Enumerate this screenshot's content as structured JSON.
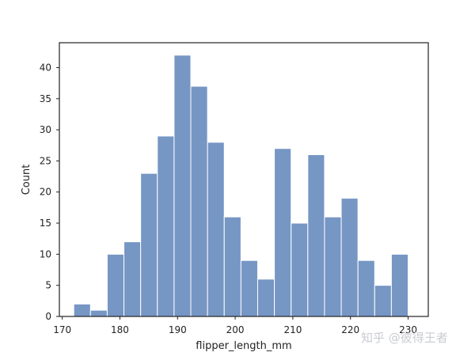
{
  "chart_data": {
    "type": "bar",
    "xlabel": "flipper_length_mm",
    "ylabel": "Count",
    "xlim": [
      169.5,
      233.5
    ],
    "ylim": [
      0,
      44
    ],
    "xticks": [
      170,
      180,
      190,
      200,
      210,
      220,
      230
    ],
    "yticks": [
      0,
      5,
      10,
      15,
      20,
      25,
      30,
      35,
      40
    ],
    "grid": false,
    "bar_color": "#7696c4",
    "bins": [
      {
        "x0": 172.0,
        "x1": 174.9,
        "value": 2
      },
      {
        "x0": 174.9,
        "x1": 177.8,
        "value": 1
      },
      {
        "x0": 177.8,
        "x1": 180.7,
        "value": 10
      },
      {
        "x0": 180.7,
        "x1": 183.6,
        "value": 12
      },
      {
        "x0": 183.6,
        "x1": 186.5,
        "value": 23
      },
      {
        "x0": 186.5,
        "x1": 189.4,
        "value": 29
      },
      {
        "x0": 189.4,
        "x1": 192.3,
        "value": 42
      },
      {
        "x0": 192.3,
        "x1": 195.2,
        "value": 37
      },
      {
        "x0": 195.2,
        "x1": 198.1,
        "value": 28
      },
      {
        "x0": 198.1,
        "x1": 201.0,
        "value": 16
      },
      {
        "x0": 201.0,
        "x1": 203.9,
        "value": 9
      },
      {
        "x0": 203.9,
        "x1": 206.8,
        "value": 6
      },
      {
        "x0": 206.8,
        "x1": 209.7,
        "value": 27
      },
      {
        "x0": 209.7,
        "x1": 212.6,
        "value": 15
      },
      {
        "x0": 212.6,
        "x1": 215.5,
        "value": 26
      },
      {
        "x0": 215.5,
        "x1": 218.4,
        "value": 16
      },
      {
        "x0": 218.4,
        "x1": 221.3,
        "value": 19
      },
      {
        "x0": 221.3,
        "x1": 224.2,
        "value": 9
      },
      {
        "x0": 224.2,
        "x1": 227.1,
        "value": 5
      },
      {
        "x0": 227.1,
        "x1": 230.0,
        "value": 10
      }
    ]
  },
  "watermark": "知乎 @彼得王者"
}
